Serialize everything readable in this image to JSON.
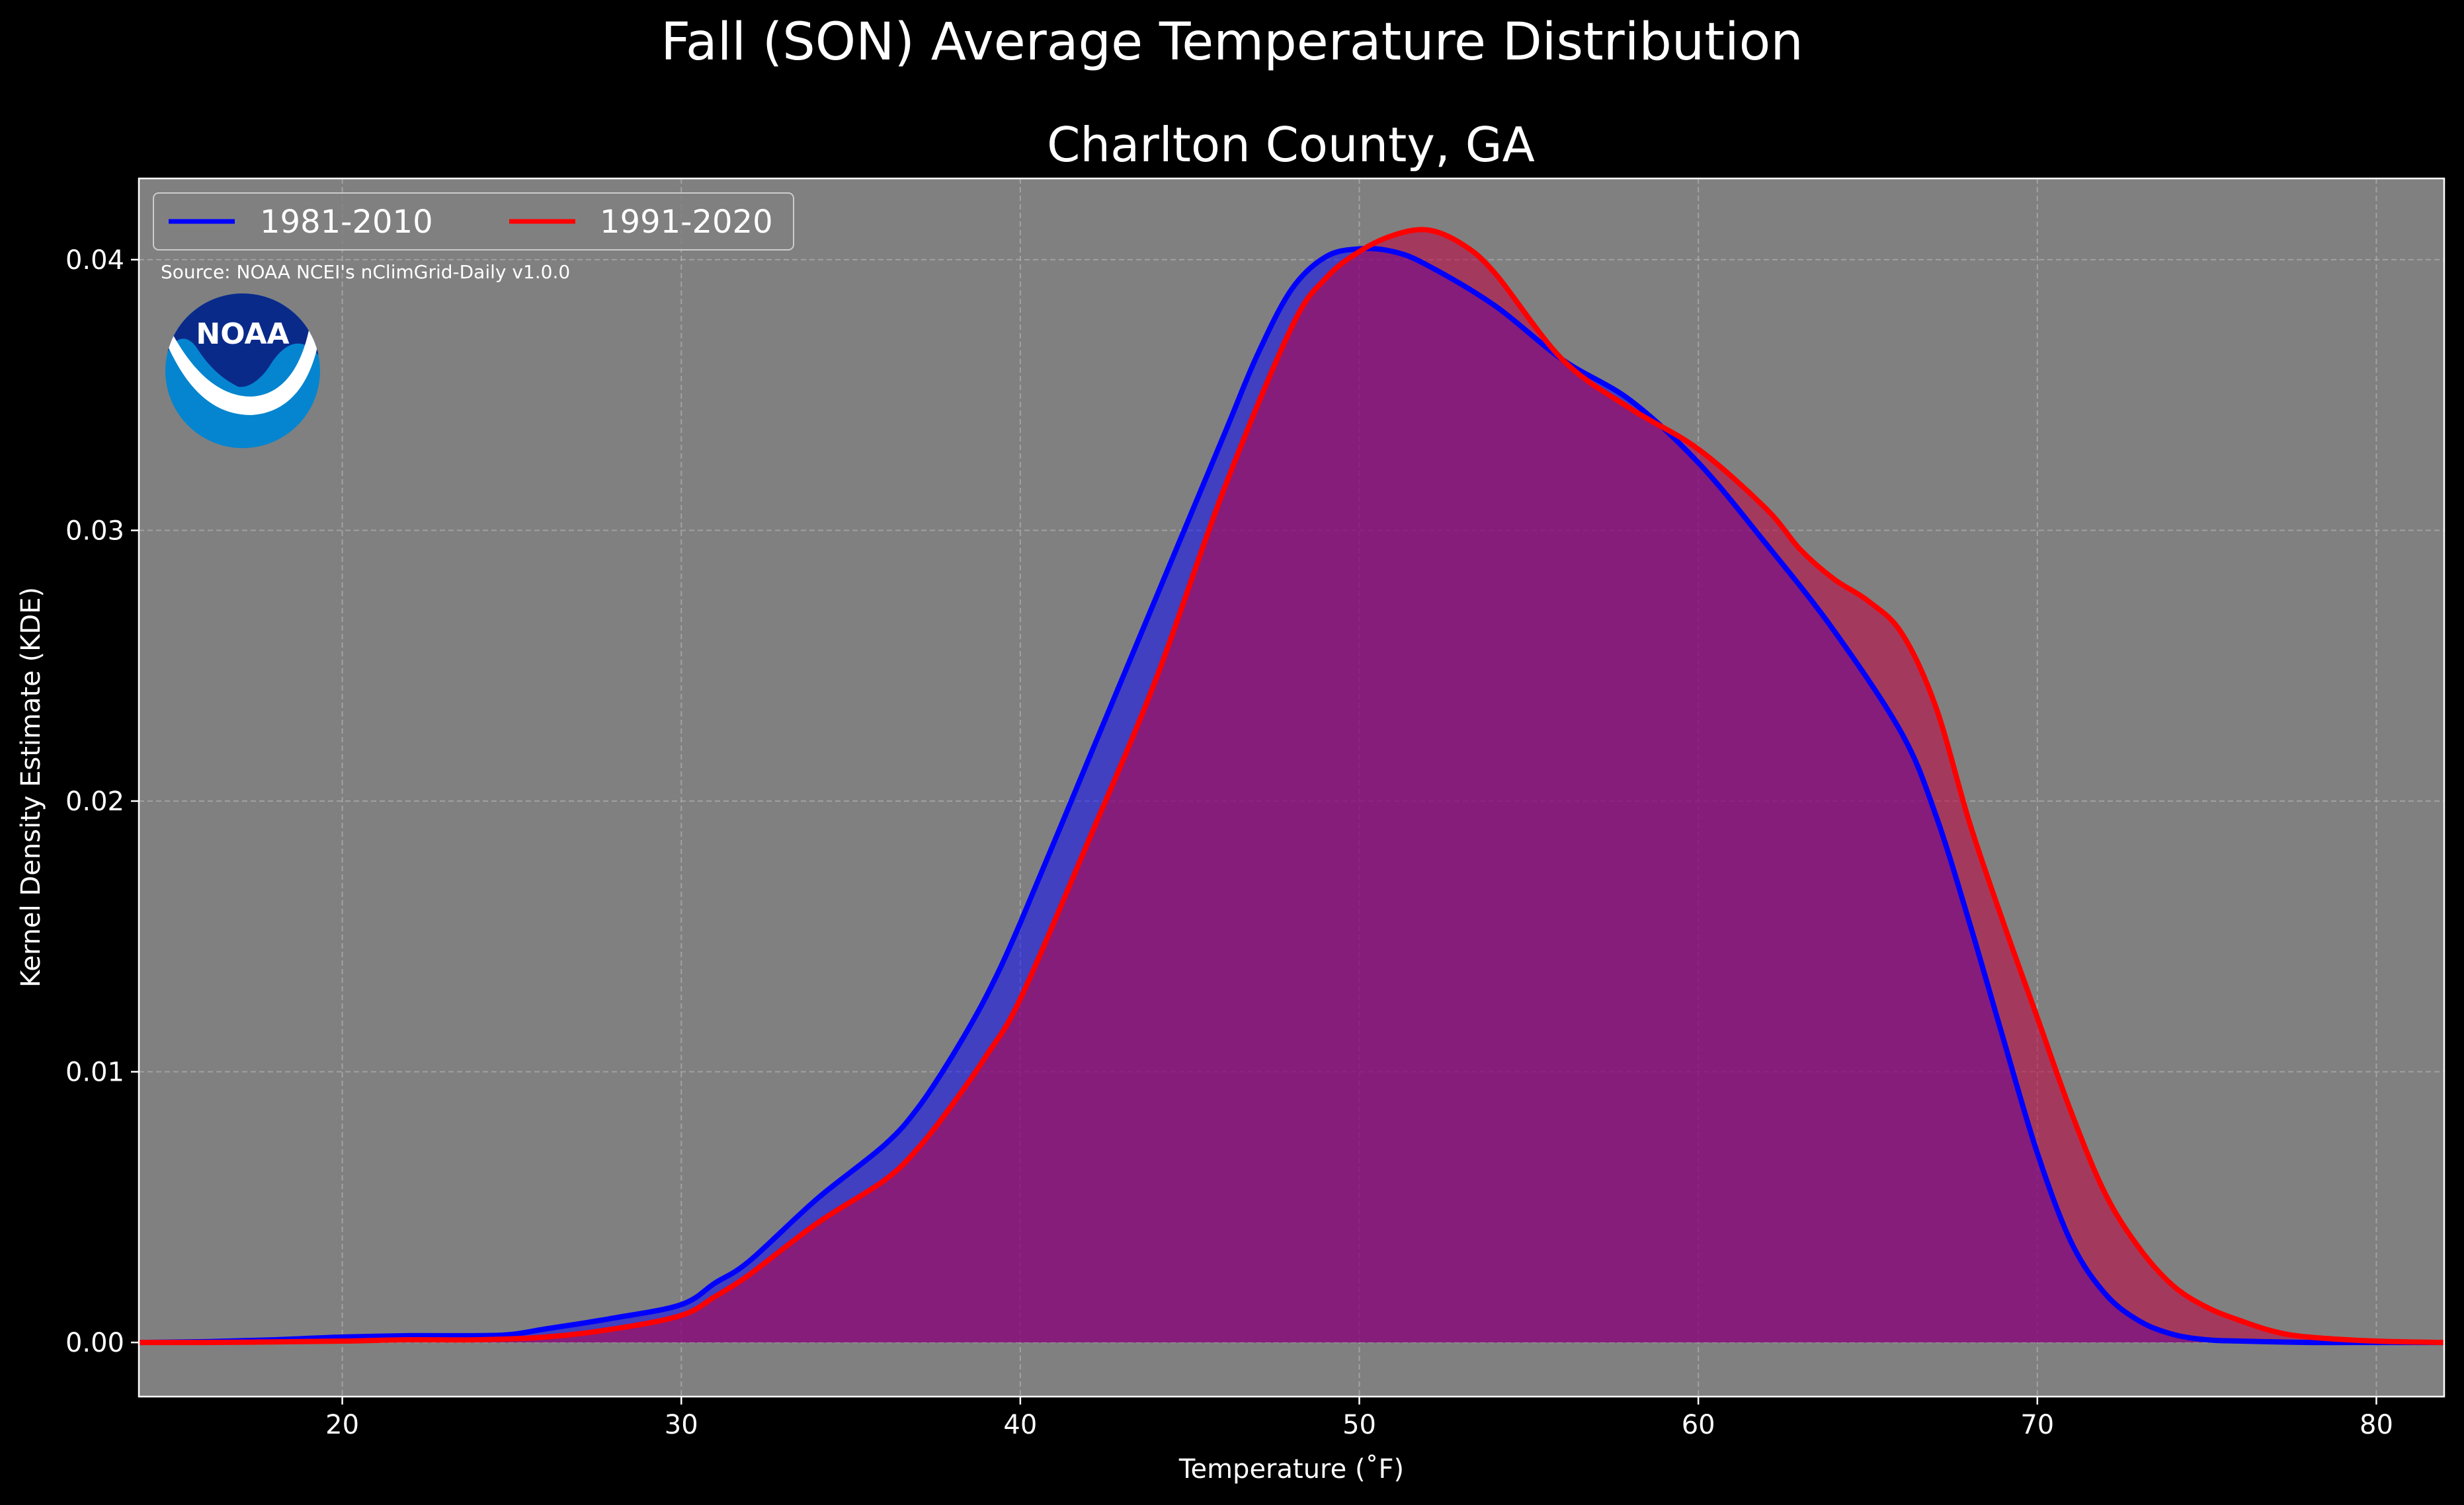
{
  "chart_data": {
    "type": "area",
    "title": "Fall (SON) Average Temperature Distribution",
    "subtitle": "Charlton County, GA",
    "xlabel": "Temperature (˚F)",
    "ylabel": "Kernel Density Estimate (KDE)",
    "source": "Source: NOAA NCEI's nClimGrid-Daily v1.0.0",
    "logo_text": "NOAA",
    "xlim": [
      14,
      82
    ],
    "ylim": [
      -0.002,
      0.043
    ],
    "xticks": [
      20,
      30,
      40,
      50,
      60,
      70,
      80
    ],
    "yticks": [
      0.0,
      0.01,
      0.02,
      0.03,
      0.04
    ],
    "xtick_labels": [
      "20",
      "30",
      "40",
      "50",
      "60",
      "70",
      "80"
    ],
    "ytick_labels": [
      "0.00",
      "0.01",
      "0.02",
      "0.03",
      "0.04"
    ],
    "grid": true,
    "legend_position": "top-left",
    "background_color": "#808080",
    "series": [
      {
        "name": "1981-2010",
        "color": "#0000ff",
        "fill_color": "#0000ff",
        "fill_opacity": 0.5,
        "x": [
          14,
          16,
          18,
          20,
          22,
          24,
          25,
          26,
          28,
          30,
          31,
          32,
          34,
          36,
          37,
          38,
          39,
          40,
          42,
          44,
          46,
          47,
          48,
          49,
          50,
          51,
          52,
          54,
          56,
          58,
          60,
          62,
          64,
          66,
          67,
          68,
          69,
          70,
          71,
          72,
          73,
          74,
          75,
          76,
          78,
          80,
          82
        ],
        "y": [
          0.0,
          3e-05,
          0.0001,
          0.0002,
          0.00025,
          0.00025,
          0.0003,
          0.0005,
          0.0009,
          0.0014,
          0.0022,
          0.003,
          0.0053,
          0.0073,
          0.0087,
          0.0106,
          0.0128,
          0.0155,
          0.0215,
          0.0275,
          0.0335,
          0.0365,
          0.0389,
          0.0401,
          0.0404,
          0.0403,
          0.0398,
          0.0383,
          0.0363,
          0.0348,
          0.0325,
          0.0295,
          0.0263,
          0.0225,
          0.0195,
          0.0155,
          0.0112,
          0.007,
          0.0037,
          0.0018,
          0.0008,
          0.0003,
          0.0001,
          5e-05,
          0.0,
          0.0,
          0.0
        ]
      },
      {
        "name": "1991-2020",
        "color": "#ff0000",
        "fill_color": "#c00040",
        "fill_opacity": 0.55,
        "x": [
          14,
          16,
          18,
          20,
          22,
          24,
          26,
          28,
          30,
          31,
          32,
          34,
          36,
          37,
          38,
          39,
          40,
          42,
          44,
          46,
          48,
          49,
          50,
          51,
          52,
          53,
          54,
          56,
          58,
          60,
          62,
          63,
          64,
          65,
          66,
          67,
          68,
          69,
          70,
          71,
          72,
          73,
          74,
          75,
          76,
          77,
          78,
          80,
          82
        ],
        "y": [
          0.0,
          0.0,
          2e-05,
          5e-05,
          0.0001,
          0.0001,
          0.0002,
          0.0005,
          0.001,
          0.0017,
          0.0025,
          0.0044,
          0.006,
          0.0072,
          0.0088,
          0.0106,
          0.0127,
          0.0185,
          0.0245,
          0.0315,
          0.0375,
          0.0393,
          0.0403,
          0.0409,
          0.0411,
          0.0406,
          0.0395,
          0.0363,
          0.0345,
          0.033,
          0.0308,
          0.0293,
          0.0282,
          0.0274,
          0.0262,
          0.0235,
          0.0192,
          0.0155,
          0.012,
          0.0085,
          0.0055,
          0.0035,
          0.0021,
          0.0013,
          0.0008,
          0.0004,
          0.0002,
          5e-05,
          0.0
        ]
      }
    ]
  }
}
